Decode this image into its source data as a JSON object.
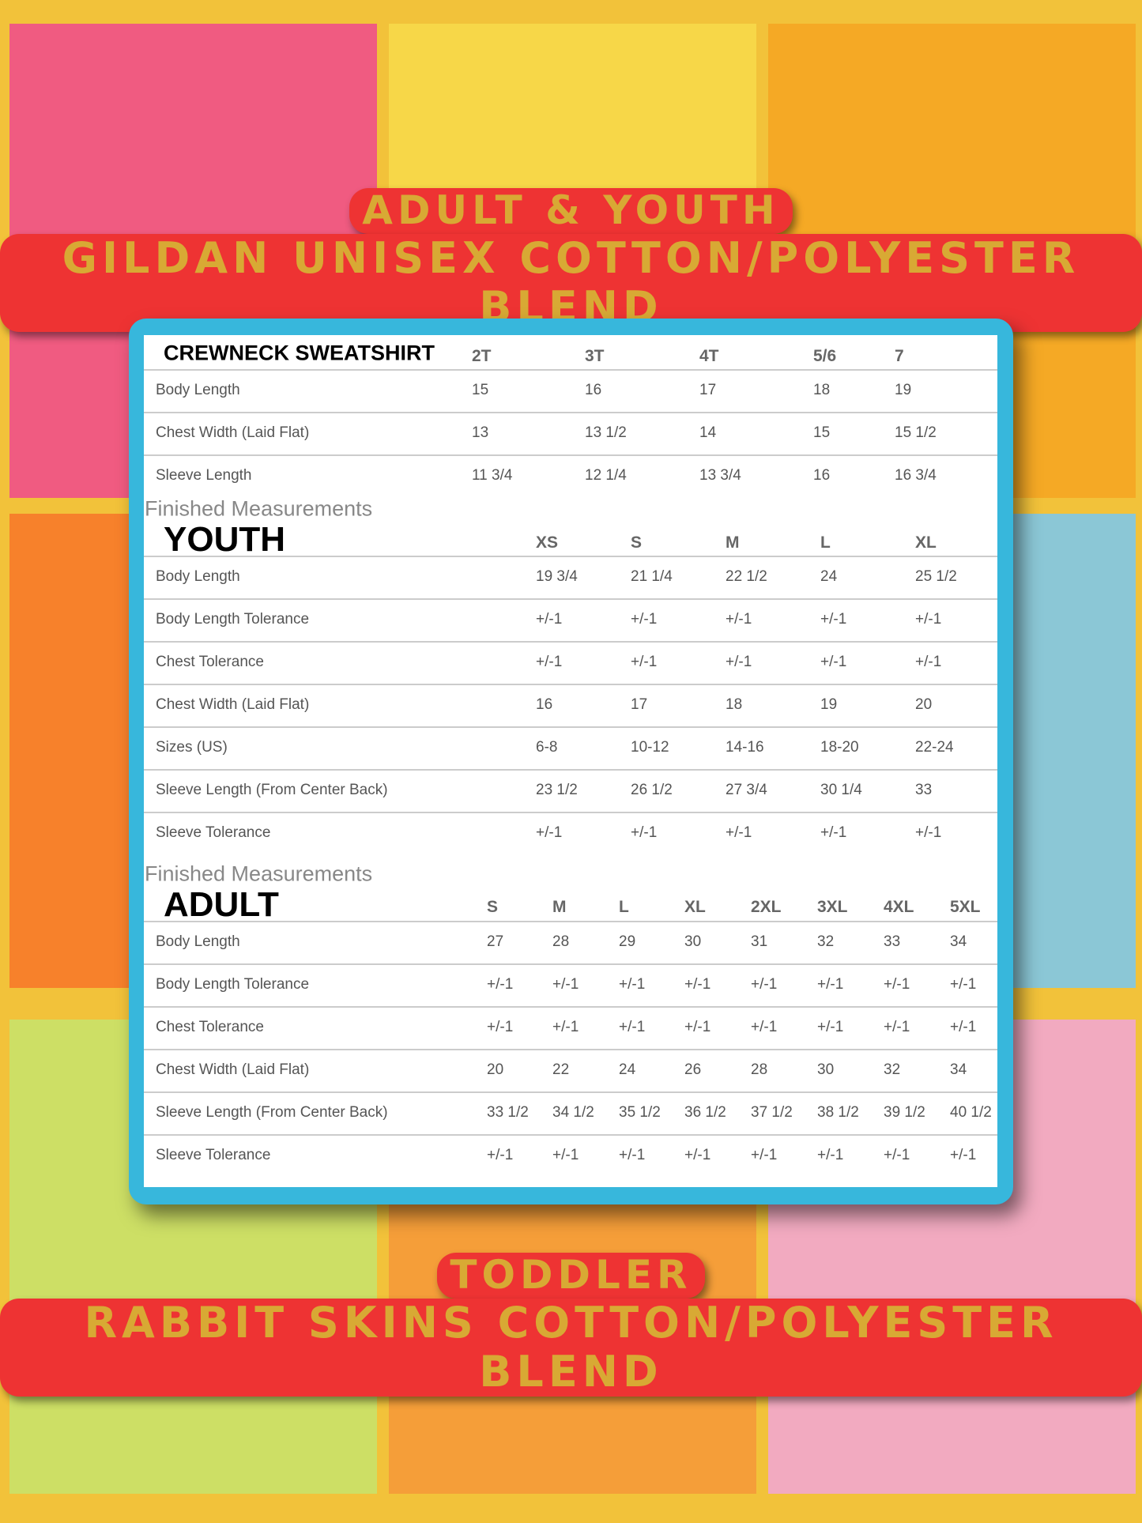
{
  "banner_top": {
    "line1": "ADULT & YOUTH",
    "line2": "GILDAN UNISEX COTTON/POLYESTER BLEND"
  },
  "banner_bottom": {
    "line1": "TODDLER",
    "line2": "RABBIT SKINS COTTON/POLYESTER BLEND"
  },
  "colors": {
    "panel_border": "#37b7dc",
    "banner_bg": "#ee3333",
    "banner_text": "#d8a934"
  },
  "crewneck": {
    "title": "CREWNECK SWEATSHIRT",
    "sizes": [
      "2T",
      "3T",
      "4T",
      "5/6",
      "7"
    ],
    "rows": [
      [
        "Body Length",
        "15",
        "16",
        "17",
        "18",
        "19"
      ],
      [
        "Chest Width (Laid Flat)",
        "13",
        "13 1/2",
        "14",
        "15",
        "15 1/2"
      ],
      [
        "Sleeve Length",
        "11 3/4",
        "12 1/4",
        "13 3/4",
        "16",
        "16 3/4"
      ]
    ]
  },
  "youth": {
    "caption": "Finished Measurements",
    "title": "YOUTH",
    "sizes": [
      "XS",
      "S",
      "M",
      "L",
      "XL"
    ],
    "rows": [
      [
        "Body Length",
        "19 3/4",
        "21 1/4",
        "22 1/2",
        "24",
        "25 1/2"
      ],
      [
        "Body Length Tolerance",
        "+/-1",
        "+/-1",
        "+/-1",
        "+/-1",
        "+/-1"
      ],
      [
        "Chest Tolerance",
        "+/-1",
        "+/-1",
        "+/-1",
        "+/-1",
        "+/-1"
      ],
      [
        "Chest Width (Laid Flat)",
        "16",
        "17",
        "18",
        "19",
        "20"
      ],
      [
        "Sizes (US)",
        "6-8",
        "10-12",
        "14-16",
        "18-20",
        "22-24"
      ],
      [
        "Sleeve Length (From Center Back)",
        "23 1/2",
        "26 1/2",
        "27 3/4",
        "30 1/4",
        "33"
      ],
      [
        "Sleeve Tolerance",
        "+/-1",
        "+/-1",
        "+/-1",
        "+/-1",
        "+/-1"
      ]
    ]
  },
  "adult": {
    "caption": "Finished Measurements",
    "title": "ADULT",
    "sizes": [
      "S",
      "M",
      "L",
      "XL",
      "2XL",
      "3XL",
      "4XL",
      "5XL"
    ],
    "rows": [
      [
        "Body Length",
        "27",
        "28",
        "29",
        "30",
        "31",
        "32",
        "33",
        "34"
      ],
      [
        "Body Length Tolerance",
        "+/-1",
        "+/-1",
        "+/-1",
        "+/-1",
        "+/-1",
        "+/-1",
        "+/-1",
        "+/-1"
      ],
      [
        "Chest Tolerance",
        "+/-1",
        "+/-1",
        "+/-1",
        "+/-1",
        "+/-1",
        "+/-1",
        "+/-1",
        "+/-1"
      ],
      [
        "Chest Width (Laid Flat)",
        "20",
        "22",
        "24",
        "26",
        "28",
        "30",
        "32",
        "34"
      ],
      [
        "Sleeve Length (From Center Back)",
        "33 1/2",
        "34 1/2",
        "35 1/2",
        "36 1/2",
        "37 1/2",
        "38 1/2",
        "39 1/2",
        "40 1/2"
      ],
      [
        "Sleeve Tolerance",
        "+/-1",
        "+/-1",
        "+/-1",
        "+/-1",
        "+/-1",
        "+/-1",
        "+/-1",
        "+/-1"
      ]
    ]
  }
}
